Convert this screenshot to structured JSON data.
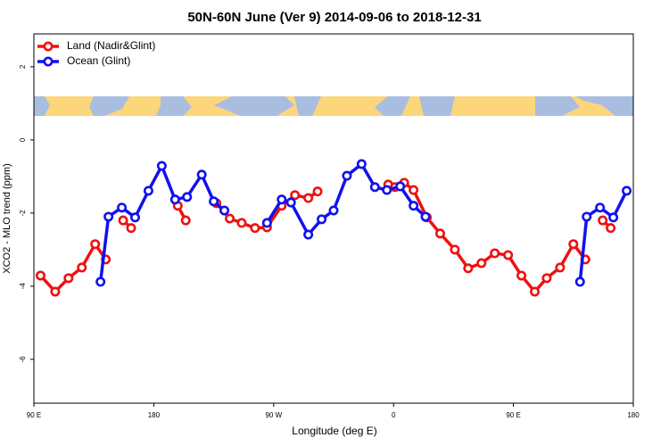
{
  "chart_data": {
    "type": "line",
    "title": "50N-60N June (Ver 9)   2014-09-06 to 2018-12-31",
    "x_label": "Longitude (deg E)",
    "y_label": "XCO2 - MLO trend (ppm)",
    "xlim": [
      90,
      540
    ],
    "xticks": [
      {
        "value": 90,
        "label": "90 E"
      },
      180,
      {
        "value": 270,
        "label": "90 W"
      },
      {
        "value": 360,
        "label": "0"
      },
      {
        "value": 450,
        "label": "90 E"
      },
      {
        "value": 540,
        "label": "180"
      }
    ],
    "ylim": [
      -7.2,
      2.9
    ],
    "yticks": [
      -6,
      -4,
      -2,
      0,
      2
    ],
    "legend": "top-left",
    "series": [
      {
        "name": "Land (Nadir&Glint)",
        "color": "#ee1111",
        "x": [
          95,
          106,
          116,
          126,
          136,
          144,
          null,
          157,
          163,
          null,
          198,
          204,
          null,
          227,
          237,
          246,
          256,
          265,
          276,
          286,
          296,
          303,
          null,
          356,
          361,
          368,
          375,
          385,
          395,
          406,
          416,
          426,
          436,
          446,
          456,
          466,
          475,
          485,
          495,
          504,
          null,
          517,
          523
        ],
        "values": [
          -3.71,
          -4.15,
          -3.78,
          -3.49,
          -2.85,
          -3.27,
          null,
          -2.2,
          -2.41,
          null,
          -1.8,
          -2.2,
          null,
          -1.73,
          -2.15,
          -2.27,
          -2.41,
          -2.39,
          -1.8,
          -1.51,
          -1.59,
          -1.41,
          null,
          -1.22,
          -1.29,
          -1.17,
          -1.37,
          -2.12,
          -2.56,
          -3.0,
          -3.51,
          -3.37,
          -3.1,
          -3.15,
          -3.71,
          -4.15,
          -3.78,
          -3.49,
          -2.85,
          -3.27,
          null,
          -2.2,
          -2.41
        ]
      },
      {
        "name": "Ocean (Glint)",
        "color": "#1111ee",
        "x": [
          140,
          146,
          156,
          166,
          176,
          186,
          196,
          205,
          216,
          225,
          233,
          null,
          265,
          276,
          283,
          296,
          306,
          315,
          325,
          336,
          346,
          355,
          365,
          375,
          384,
          null,
          500,
          505,
          515,
          525,
          535
        ],
        "values": [
          -3.88,
          -2.1,
          -1.85,
          -2.12,
          -1.39,
          -0.71,
          -1.63,
          -1.56,
          -0.95,
          -1.68,
          -1.93,
          null,
          -2.27,
          -1.63,
          -1.71,
          -2.59,
          -2.17,
          -1.93,
          -0.98,
          -0.66,
          -1.29,
          -1.37,
          -1.27,
          -1.8,
          -2.1,
          null,
          -3.88,
          -2.1,
          -1.85,
          -2.12,
          -1.39
        ]
      }
    ]
  }
}
